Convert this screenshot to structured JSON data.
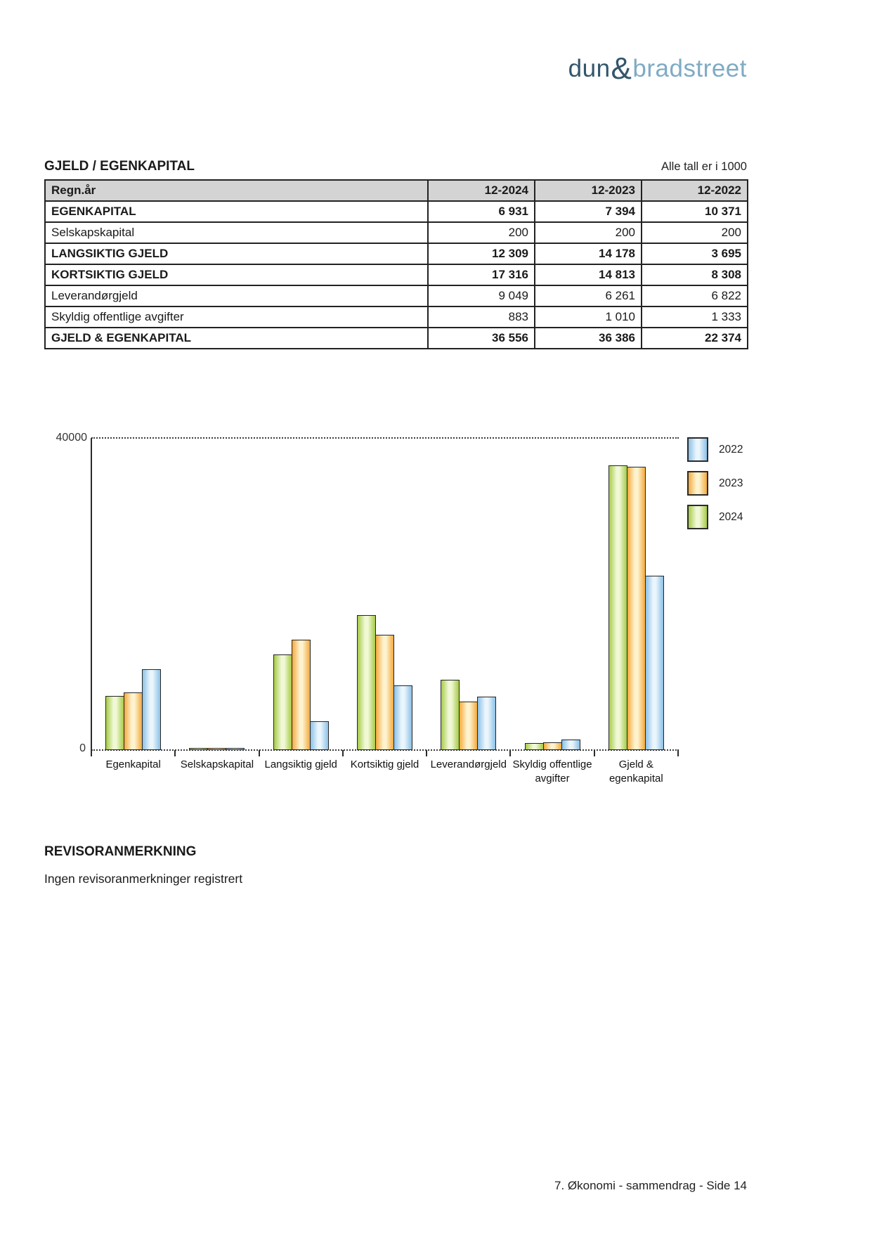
{
  "logo": {
    "part1": "dun",
    "amp": "&",
    "part2": "bradstreet",
    "color_dark": "#33566b",
    "color_light": "#7fabc4"
  },
  "section": {
    "title": "GJELD / EGENKAPITAL",
    "unit_note": "Alle tall er i 1000"
  },
  "table": {
    "headers": [
      "Regn.år",
      "12-2024",
      "12-2023",
      "12-2022"
    ],
    "rows": [
      {
        "label": "EGENKAPITAL",
        "values": [
          "6 931",
          "7 394",
          "10 371"
        ],
        "bold": true
      },
      {
        "label": "Selskapskapital",
        "values": [
          "200",
          "200",
          "200"
        ],
        "bold": false
      },
      {
        "label": "LANGSIKTIG GJELD",
        "values": [
          "12 309",
          "14 178",
          "3 695"
        ],
        "bold": true
      },
      {
        "label": "KORTSIKTIG GJELD",
        "values": [
          "17 316",
          "14 813",
          "8 308"
        ],
        "bold": true
      },
      {
        "label": "Leverandørgjeld",
        "values": [
          "9 049",
          "6 261",
          "6 822"
        ],
        "bold": false
      },
      {
        "label": "Skyldig offentlige avgifter",
        "values": [
          "883",
          "1 010",
          "1 333"
        ],
        "bold": false
      },
      {
        "label": "GJELD & EGENKAPITAL",
        "values": [
          "36 556",
          "36 386",
          "22 374"
        ],
        "bold": true
      }
    ]
  },
  "chart_data": {
    "type": "bar",
    "title": "",
    "xlabel": "",
    "ylabel": "",
    "ylim": [
      0,
      40000
    ],
    "ytick_labels": {
      "top": "40000",
      "zero": "0"
    },
    "grid": "dotted line at 40000 and at baseline 0",
    "legend_position": "right-top",
    "legend_order": [
      "2022",
      "2023",
      "2024"
    ],
    "categories": [
      "Egenkapital",
      "Selskapskapital",
      "Langsiktig gjeld",
      "Kortsiktig gjeld",
      "Leverandørgjeld",
      "Skyldig offentlige avgifter",
      "Gjeld & egenkapital"
    ],
    "series": [
      {
        "name": "2024",
        "values": [
          6931,
          200,
          12309,
          17316,
          9049,
          883,
          36556
        ],
        "color_edge": "#a6cb48",
        "color_light": "#f0f8d6"
      },
      {
        "name": "2023",
        "values": [
          7394,
          200,
          14178,
          14813,
          6261,
          1010,
          36386
        ],
        "color_edge": "#f4aa3d",
        "color_light": "#fdf3cf"
      },
      {
        "name": "2022",
        "values": [
          10371,
          200,
          3695,
          8308,
          6822,
          1333,
          22374
        ],
        "color_edge": "#8bc1e7",
        "color_light": "#eaf5fc"
      }
    ]
  },
  "notes": {
    "heading": "REVISORANMERKNING",
    "body": "Ingen revisoranmerkninger registrert"
  },
  "footer": {
    "text": "7. Økonomi - sammendrag - Side 14"
  }
}
